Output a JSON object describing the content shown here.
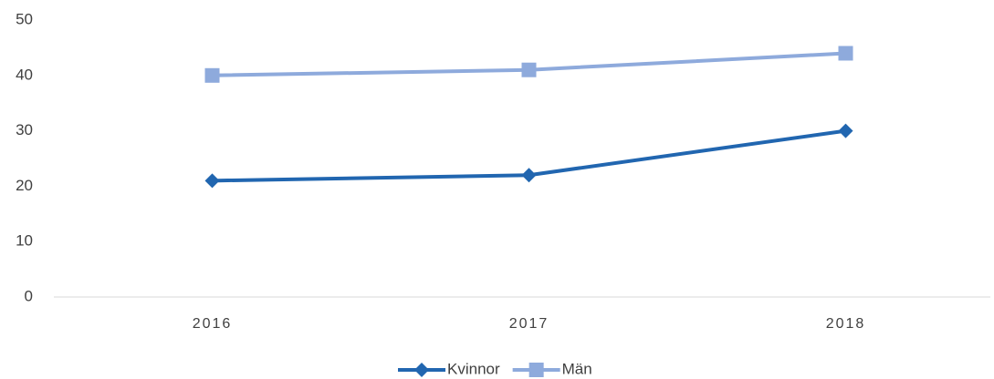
{
  "chart_data": {
    "type": "line",
    "categories": [
      "2016",
      "2017",
      "2018"
    ],
    "series": [
      {
        "name": "Kvinnor",
        "color": "#2166b0",
        "marker": "diamond",
        "values": [
          21,
          22,
          30
        ]
      },
      {
        "name": "Män",
        "color": "#8eaadc",
        "marker": "square",
        "values": [
          40,
          41,
          44
        ]
      }
    ],
    "ylim": [
      0,
      50
    ],
    "yticks": [
      0,
      10,
      20,
      30,
      40,
      50
    ],
    "grid": false,
    "legend": "bottom"
  }
}
